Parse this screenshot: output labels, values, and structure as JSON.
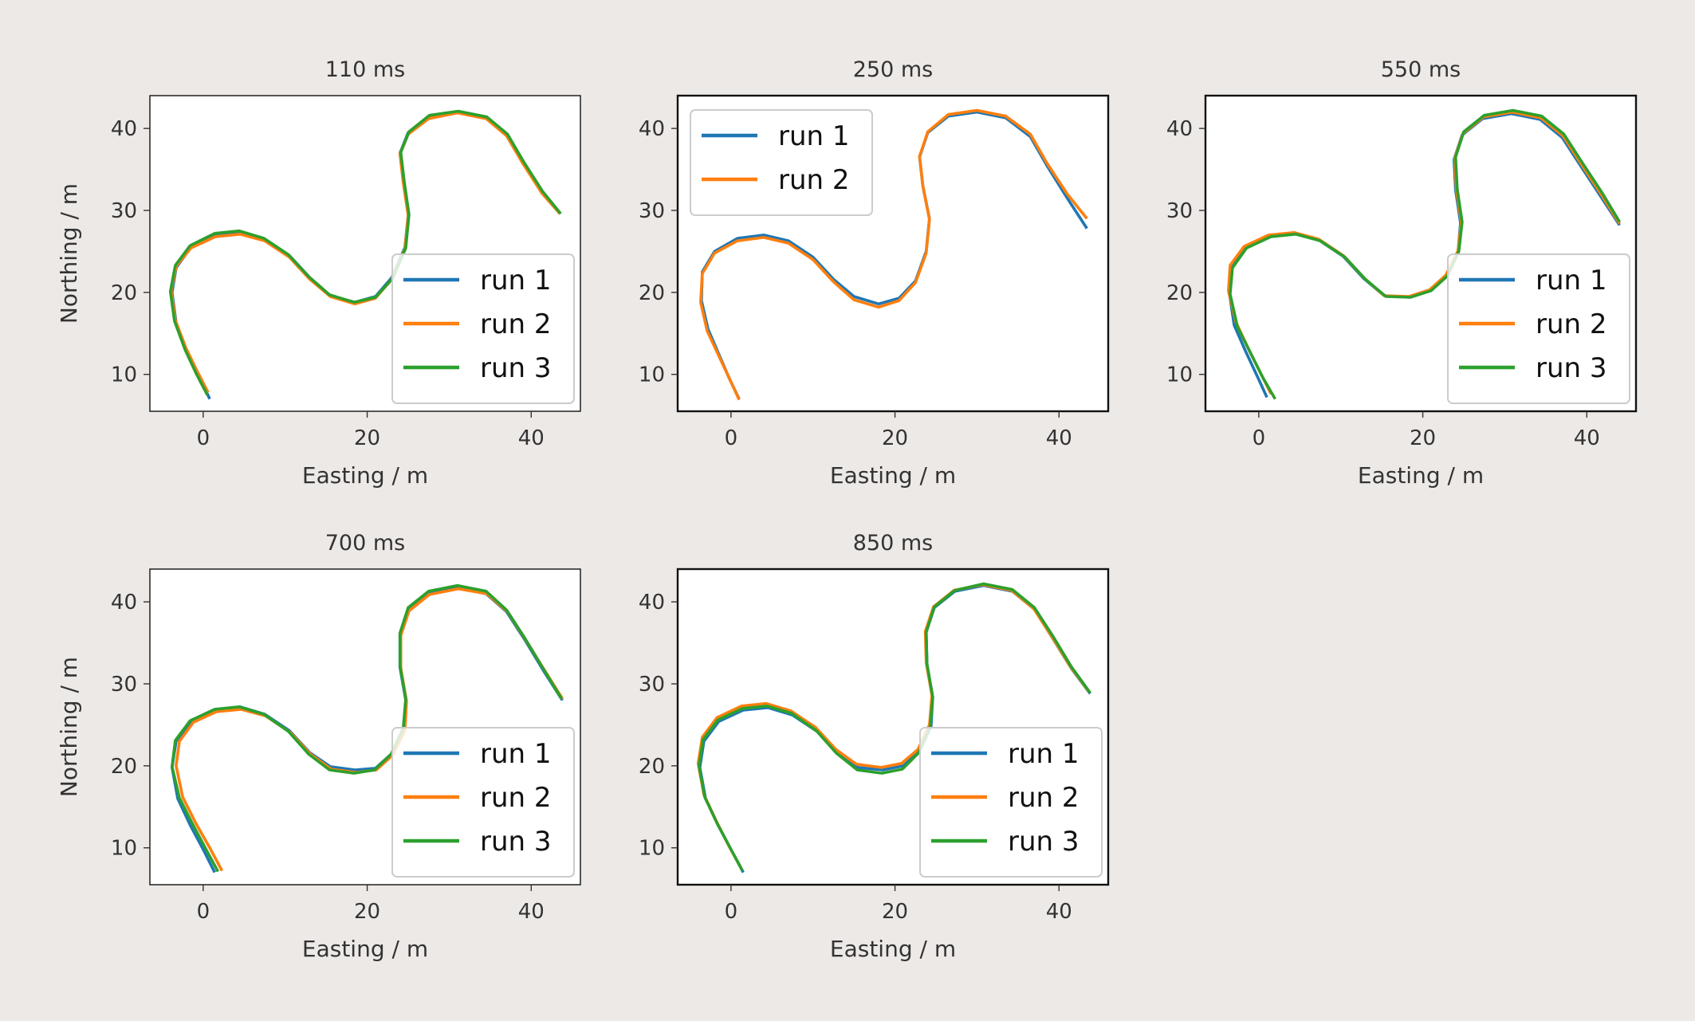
{
  "chart_data": [
    {
      "type": "line",
      "title": "110 ms",
      "xlabel": "Easting / m",
      "ylabel": "Northing / m",
      "xlim": [
        -6.5,
        46
      ],
      "ylim": [
        5.5,
        44
      ],
      "xticks": [
        0,
        20,
        40
      ],
      "yticks": [
        10,
        20,
        30,
        40
      ],
      "legend": {
        "placement": "lower-right"
      },
      "series": [
        {
          "name": "run 1",
          "color": "#1f77b4",
          "x": [
            0.8,
            -0.5,
            -2.0,
            -3.3,
            -3.8,
            -3.3,
            -1.5,
            1.5,
            4.5,
            7.5,
            10.5,
            13.0,
            15.5,
            18.5,
            21.0,
            23.0,
            24.6,
            25.0,
            24.4,
            24.0,
            25.0,
            27.5,
            31.0,
            34.5,
            37.0,
            39.0,
            41.3,
            43.5
          ],
          "y": [
            7.0,
            9.8,
            12.8,
            16.3,
            20.0,
            23.0,
            25.5,
            27.0,
            27.3,
            26.5,
            24.5,
            21.8,
            19.6,
            18.8,
            19.5,
            21.8,
            25.5,
            29.5,
            33.5,
            37.0,
            39.5,
            41.4,
            42.0,
            41.3,
            39.2,
            35.8,
            32.2,
            29.6
          ]
        },
        {
          "name": "run 2",
          "color": "#ff7f0e",
          "x": [
            0.6,
            -0.7,
            -2.1,
            -3.4,
            -3.9,
            -3.3,
            -1.5,
            1.5,
            4.5,
            7.5,
            10.5,
            13.0,
            15.5,
            18.5,
            21.0,
            23.0,
            24.6,
            25.0,
            24.4,
            24.0,
            25.0,
            27.5,
            31.0,
            34.5,
            37.0,
            39.0,
            41.3,
            43.5
          ],
          "y": [
            7.8,
            10.3,
            13.2,
            16.6,
            20.2,
            23.2,
            25.4,
            26.8,
            27.1,
            26.3,
            24.3,
            21.6,
            19.5,
            18.6,
            19.3,
            21.6,
            25.3,
            29.4,
            33.4,
            36.9,
            39.3,
            41.2,
            41.9,
            41.2,
            39.1,
            35.7,
            32.1,
            29.6
          ]
        },
        {
          "name": "run 3",
          "color": "#2ca02c",
          "x": [
            0.5,
            -0.8,
            -2.2,
            -3.5,
            -4.0,
            -3.4,
            -1.6,
            1.4,
            4.4,
            7.4,
            10.4,
            12.9,
            15.4,
            18.4,
            21.0,
            23.1,
            24.7,
            25.1,
            24.5,
            24.1,
            25.1,
            27.6,
            31.1,
            34.6,
            37.1,
            39.1,
            41.4,
            43.6
          ],
          "y": [
            7.5,
            10.0,
            13.0,
            16.5,
            20.1,
            23.3,
            25.7,
            27.2,
            27.5,
            26.6,
            24.6,
            21.9,
            19.7,
            18.8,
            19.4,
            21.7,
            25.4,
            29.5,
            33.6,
            37.1,
            39.6,
            41.6,
            42.1,
            41.4,
            39.3,
            35.9,
            32.3,
            29.6
          ]
        }
      ]
    },
    {
      "type": "line",
      "title": "250 ms",
      "xlabel": "Easting / m",
      "ylabel": "",
      "xlim": [
        -6.5,
        46
      ],
      "ylim": [
        5.5,
        44
      ],
      "xticks": [
        0,
        20,
        40
      ],
      "yticks": [
        10,
        20,
        30,
        40
      ],
      "legend": {
        "placement": "upper-left"
      },
      "series": [
        {
          "name": "run 1",
          "color": "#1f77b4",
          "x": [
            1.0,
            -0.2,
            -1.5,
            -2.8,
            -3.6,
            -3.5,
            -2.0,
            0.8,
            4.0,
            7.0,
            10.0,
            12.5,
            15.0,
            18.0,
            20.5,
            22.5,
            23.8,
            24.2,
            23.4,
            23.0,
            24.0,
            26.5,
            30.0,
            33.5,
            36.5,
            38.5,
            41.0,
            43.4
          ],
          "y": [
            7.0,
            9.5,
            12.5,
            15.5,
            19.0,
            22.5,
            25.0,
            26.6,
            27.0,
            26.3,
            24.3,
            21.6,
            19.5,
            18.6,
            19.3,
            21.4,
            25.0,
            29.0,
            33.0,
            36.5,
            39.5,
            41.5,
            42.0,
            41.3,
            39.0,
            35.5,
            31.5,
            27.8
          ]
        },
        {
          "name": "run 2",
          "color": "#ff7f0e",
          "x": [
            1.0,
            -0.1,
            -1.5,
            -2.9,
            -3.7,
            -3.5,
            -2.0,
            0.8,
            4.0,
            7.0,
            10.0,
            12.5,
            15.0,
            18.0,
            20.5,
            22.5,
            23.8,
            24.2,
            23.4,
            23.0,
            24.0,
            26.5,
            30.0,
            33.5,
            36.5,
            38.5,
            41.0,
            43.4
          ],
          "y": [
            6.9,
            9.3,
            12.3,
            15.3,
            18.8,
            22.3,
            24.8,
            26.3,
            26.7,
            26.0,
            24.0,
            21.3,
            19.1,
            18.2,
            19.0,
            21.2,
            24.8,
            28.9,
            33.0,
            36.6,
            39.6,
            41.7,
            42.2,
            41.5,
            39.3,
            35.8,
            32.0,
            29.0
          ]
        }
      ]
    },
    {
      "type": "line",
      "title": "550 ms",
      "xlabel": "Easting / m",
      "ylabel": "",
      "xlim": [
        -6.5,
        46
      ],
      "ylim": [
        5.5,
        44
      ],
      "xticks": [
        0,
        20,
        40
      ],
      "yticks": [
        10,
        20,
        30,
        40
      ],
      "legend": {
        "placement": "lower-right"
      },
      "series": [
        {
          "name": "run 1",
          "color": "#1f77b4",
          "x": [
            1.0,
            -0.2,
            -1.6,
            -3.0,
            -3.6,
            -3.3,
            -1.6,
            1.2,
            4.3,
            7.3,
            10.3,
            12.8,
            15.3,
            18.3,
            20.8,
            22.8,
            24.3,
            24.6,
            24.0,
            23.8,
            24.8,
            27.3,
            30.8,
            34.3,
            37.0,
            39.2,
            41.7,
            44.0
          ],
          "y": [
            7.2,
            9.8,
            12.8,
            16.0,
            20.0,
            23.2,
            25.5,
            26.9,
            27.2,
            26.4,
            24.4,
            21.7,
            19.6,
            19.4,
            20.2,
            22.0,
            25.0,
            28.5,
            32.5,
            36.2,
            39.2,
            41.2,
            41.8,
            41.1,
            38.9,
            35.5,
            31.7,
            28.2
          ]
        },
        {
          "name": "run 2",
          "color": "#ff7f0e",
          "x": [
            1.5,
            0.2,
            -1.3,
            -2.8,
            -3.7,
            -3.5,
            -1.8,
            1.2,
            4.3,
            7.3,
            10.3,
            12.8,
            15.3,
            18.3,
            20.8,
            22.8,
            24.3,
            24.7,
            24.1,
            23.9,
            24.9,
            27.4,
            30.9,
            34.4,
            37.1,
            39.3,
            41.8,
            44.0
          ],
          "y": [
            7.6,
            10.2,
            13.2,
            16.4,
            20.2,
            23.3,
            25.6,
            27.0,
            27.3,
            26.5,
            24.5,
            21.8,
            19.6,
            19.5,
            20.3,
            22.1,
            25.1,
            28.6,
            32.6,
            36.4,
            39.4,
            41.4,
            42.0,
            41.3,
            39.1,
            35.7,
            31.9,
            28.4
          ]
        },
        {
          "name": "run 3",
          "color": "#2ca02c",
          "x": [
            2.0,
            0.5,
            -1.0,
            -2.6,
            -3.5,
            -3.2,
            -1.5,
            1.5,
            4.5,
            7.5,
            10.5,
            13.0,
            15.5,
            18.5,
            21.0,
            23.0,
            24.4,
            24.8,
            24.2,
            24.0,
            25.0,
            27.5,
            31.0,
            34.5,
            37.2,
            39.4,
            41.9,
            44.0
          ],
          "y": [
            7.0,
            9.6,
            12.6,
            15.8,
            19.8,
            23.0,
            25.4,
            26.8,
            27.1,
            26.3,
            24.3,
            21.6,
            19.5,
            19.4,
            20.2,
            22.0,
            25.0,
            28.6,
            32.6,
            36.5,
            39.6,
            41.6,
            42.2,
            41.5,
            39.3,
            35.9,
            32.1,
            28.6
          ]
        }
      ]
    },
    {
      "type": "line",
      "title": "700 ms",
      "xlabel": "Easting / m",
      "ylabel": "Northing / m",
      "xlim": [
        -6.5,
        46
      ],
      "ylim": [
        5.5,
        44
      ],
      "xticks": [
        0,
        20,
        40
      ],
      "yticks": [
        10,
        20,
        30,
        40
      ],
      "legend": {
        "placement": "lower-right"
      },
      "series": [
        {
          "name": "run 1",
          "color": "#1f77b4",
          "x": [
            1.4,
            0.0,
            -1.6,
            -3.1,
            -3.8,
            -3.3,
            -1.5,
            1.5,
            4.5,
            7.5,
            10.5,
            13.0,
            15.5,
            18.5,
            21.0,
            23.0,
            24.5,
            24.7,
            24.0,
            24.0,
            25.0,
            27.5,
            31.0,
            34.5,
            37.0,
            39.2,
            41.5,
            43.8
          ],
          "y": [
            7.0,
            9.8,
            12.8,
            16.0,
            19.8,
            23.0,
            25.4,
            26.8,
            27.2,
            26.3,
            24.3,
            21.6,
            19.9,
            19.5,
            19.7,
            21.5,
            24.5,
            28.0,
            32.0,
            36.0,
            39.0,
            41.0,
            41.7,
            41.0,
            38.8,
            35.4,
            31.6,
            28.0
          ]
        },
        {
          "name": "run 2",
          "color": "#ff7f0e",
          "x": [
            2.3,
            0.8,
            -0.9,
            -2.5,
            -3.3,
            -2.9,
            -1.2,
            1.6,
            4.6,
            7.6,
            10.6,
            13.1,
            15.6,
            18.6,
            21.1,
            23.1,
            24.6,
            24.8,
            24.1,
            24.1,
            25.1,
            27.6,
            31.1,
            34.6,
            37.1,
            39.3,
            41.6,
            43.8
          ],
          "y": [
            7.2,
            10.0,
            13.0,
            16.2,
            20.0,
            23.0,
            25.3,
            26.6,
            26.9,
            26.1,
            24.1,
            21.4,
            19.6,
            19.2,
            19.5,
            21.3,
            24.3,
            27.9,
            31.9,
            35.9,
            38.9,
            40.9,
            41.6,
            41.0,
            38.8,
            35.4,
            31.7,
            28.2
          ]
        },
        {
          "name": "run 3",
          "color": "#2ca02c",
          "x": [
            1.8,
            0.3,
            -1.3,
            -2.9,
            -3.8,
            -3.4,
            -1.6,
            1.4,
            4.4,
            7.4,
            10.4,
            12.9,
            15.4,
            18.4,
            20.9,
            22.9,
            24.4,
            24.7,
            24.0,
            24.0,
            25.0,
            27.5,
            31.0,
            34.5,
            37.0,
            39.2,
            41.5,
            43.7
          ],
          "y": [
            7.1,
            9.9,
            12.9,
            16.1,
            19.9,
            23.1,
            25.5,
            26.9,
            27.2,
            26.3,
            24.2,
            21.4,
            19.5,
            19.1,
            19.5,
            21.4,
            24.6,
            28.2,
            32.2,
            36.2,
            39.3,
            41.3,
            42.0,
            41.3,
            39.0,
            35.6,
            31.8,
            28.2
          ]
        }
      ]
    },
    {
      "type": "line",
      "title": "850 ms",
      "xlabel": "Easting / m",
      "ylabel": "",
      "xlim": [
        -6.5,
        46
      ],
      "ylim": [
        5.5,
        44
      ],
      "xticks": [
        0,
        20,
        40
      ],
      "yticks": [
        10,
        20,
        30,
        40
      ],
      "legend": {
        "placement": "lower-right"
      },
      "series": [
        {
          "name": "run 1",
          "color": "#1f77b4",
          "x": [
            1.5,
            0.0,
            -1.6,
            -3.1,
            -3.8,
            -3.3,
            -1.5,
            1.5,
            4.5,
            7.5,
            10.5,
            13.0,
            15.5,
            18.5,
            21.0,
            23.0,
            24.4,
            24.6,
            23.9,
            23.8,
            24.8,
            27.3,
            30.8,
            34.3,
            37.0,
            39.2,
            41.5,
            43.8
          ],
          "y": [
            7.0,
            9.8,
            12.8,
            16.0,
            19.8,
            23.0,
            25.4,
            26.8,
            27.1,
            26.2,
            24.2,
            21.5,
            19.8,
            19.5,
            20.0,
            21.8,
            24.8,
            28.4,
            32.4,
            36.3,
            39.3,
            41.3,
            42.0,
            41.3,
            39.1,
            35.6,
            31.9,
            28.8
          ]
        },
        {
          "name": "run 2",
          "color": "#ff7f0e",
          "x": [
            1.2,
            -0.3,
            -1.8,
            -3.3,
            -4.0,
            -3.5,
            -1.7,
            1.3,
            4.3,
            7.3,
            10.3,
            12.8,
            15.3,
            18.3,
            20.8,
            22.8,
            24.2,
            24.5,
            23.8,
            23.7,
            24.7,
            27.2,
            30.7,
            34.2,
            36.9,
            39.1,
            41.4,
            43.7
          ],
          "y": [
            7.6,
            10.3,
            13.3,
            16.5,
            20.3,
            23.5,
            25.9,
            27.3,
            27.6,
            26.7,
            24.7,
            22.0,
            20.2,
            19.8,
            20.3,
            22.0,
            25.0,
            28.6,
            32.6,
            36.4,
            39.4,
            41.4,
            42.1,
            41.4,
            39.2,
            35.8,
            32.1,
            29.0
          ]
        },
        {
          "name": "run 3",
          "color": "#2ca02c",
          "x": [
            1.4,
            -0.1,
            -1.7,
            -3.2,
            -3.9,
            -3.4,
            -1.6,
            1.4,
            4.4,
            7.4,
            10.4,
            12.9,
            15.4,
            18.4,
            20.9,
            22.9,
            24.3,
            24.6,
            23.9,
            23.8,
            24.8,
            27.3,
            30.8,
            34.3,
            37.0,
            39.2,
            41.5,
            43.8
          ],
          "y": [
            7.2,
            10.0,
            13.0,
            16.2,
            20.0,
            23.2,
            25.6,
            27.0,
            27.3,
            26.4,
            24.3,
            21.5,
            19.5,
            19.1,
            19.6,
            21.6,
            24.8,
            28.4,
            32.4,
            36.3,
            39.4,
            41.4,
            42.2,
            41.5,
            39.3,
            35.9,
            32.1,
            28.9
          ]
        }
      ]
    }
  ]
}
